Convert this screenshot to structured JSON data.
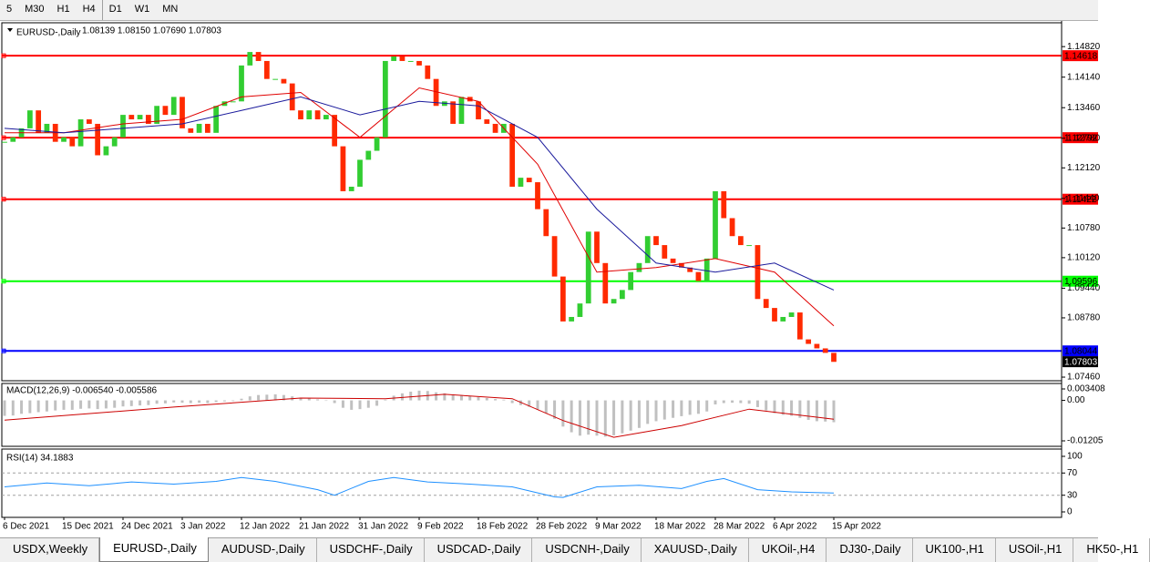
{
  "toolbar": {
    "timeframes": [
      "5",
      "M30",
      "H1",
      "H4",
      "D1",
      "W1",
      "MN"
    ]
  },
  "chart_data": [
    {
      "type": "candlestick",
      "title": "EURUSD-,Daily",
      "subtitle": "1.08139 1.08150 1.07690 1.07803",
      "categories": [
        "6 Dec 2021",
        null,
        null,
        null,
        null,
        null,
        null,
        "15 Dec 2021",
        null,
        null,
        null,
        null,
        null,
        null,
        "24 Dec 2021",
        null,
        null,
        null,
        null,
        null,
        null,
        "3 Jan 2022",
        null,
        null,
        null,
        null,
        null,
        null,
        "12 Jan 2022",
        null,
        null,
        null,
        null,
        null,
        null,
        "21 Jan 2022",
        null,
        null,
        null,
        null,
        null,
        null,
        "31 Jan 2022",
        null,
        null,
        null,
        null,
        null,
        null,
        "9 Feb 2022",
        null,
        null,
        null,
        null,
        null,
        null,
        "18 Feb 2022",
        null,
        null,
        null,
        null,
        null,
        null,
        "28 Feb 2022",
        null,
        null,
        null,
        null,
        null,
        null,
        "9 Mar 2022",
        null,
        null,
        null,
        null,
        null,
        null,
        "18 Mar 2022",
        null,
        null,
        null,
        null,
        null,
        null,
        "28 Mar 2022",
        null,
        null,
        null,
        null,
        null,
        null,
        "6 Apr 2022",
        null,
        null,
        null,
        null,
        null,
        null,
        "15 Apr 2022"
      ],
      "close": [
        1.127,
        1.128,
        1.13,
        1.134,
        1.129,
        1.131,
        1.127,
        1.128,
        1.126,
        1.132,
        1.131,
        1.124,
        1.126,
        1.128,
        1.133,
        1.132,
        1.133,
        1.131,
        1.135,
        1.133,
        1.137,
        1.13,
        1.129,
        1.131,
        1.129,
        1.135,
        1.136,
        1.136,
        1.144,
        1.147,
        1.145,
        1.141,
        1.141,
        1.14,
        1.134,
        1.132,
        1.134,
        1.132,
        1.133,
        1.126,
        1.116,
        1.117,
        1.123,
        1.125,
        1.128,
        1.145,
        1.146,
        1.145,
        1.145,
        1.144,
        1.141,
        1.135,
        1.136,
        1.131,
        1.137,
        1.136,
        1.132,
        1.131,
        1.129,
        1.131,
        1.117,
        1.119,
        1.118,
        1.112,
        1.106,
        1.097,
        1.087,
        1.088,
        1.091,
        1.107,
        1.1,
        1.091,
        1.092,
        1.094,
        1.098,
        1.1,
        1.106,
        1.104,
        1.101,
        1.1,
        1.099,
        1.098,
        1.096,
        1.101,
        1.116,
        1.11,
        1.106,
        1.104,
        1.104,
        1.092,
        1.09,
        1.087,
        1.088,
        1.089,
        1.083,
        1.082,
        1.081,
        1.08,
        1.078
      ],
      "colors": {
        "up": "#32cd32",
        "down": "#ff2a00"
      },
      "series": [
        {
          "x": [
            0,
            7,
            14,
            21,
            28,
            35,
            42,
            49,
            56,
            63,
            70,
            77,
            84,
            91,
            98
          ],
          "values": [
            1.129,
            1.129,
            1.131,
            1.132,
            1.137,
            1.138,
            1.128,
            1.139,
            1.136,
            1.122,
            1.098,
            1.099,
            1.101,
            1.098,
            1.086
          ],
          "color": "#e00000"
        },
        {
          "x": [
            0,
            7,
            14,
            21,
            28,
            35,
            42,
            49,
            56,
            63,
            70,
            77,
            84,
            91,
            98
          ],
          "values": [
            1.13,
            1.129,
            1.13,
            1.131,
            1.134,
            1.137,
            1.133,
            1.136,
            1.135,
            1.128,
            1.112,
            1.1,
            1.098,
            1.1,
            1.094
          ],
          "color": "#1a1a9c"
        }
      ],
      "levels": [
        {
          "value": 1.14618,
          "color": "#ff0000"
        },
        {
          "value": 1.12792,
          "color": "#ff0000"
        },
        {
          "value": 1.11422,
          "color": "#ff0000"
        },
        {
          "value": 1.09596,
          "color": "#00ff00"
        },
        {
          "value": 1.08044,
          "color": "#0000ff"
        }
      ],
      "last_price": 1.07803,
      "ylim": [
        1.0742,
        1.1529
      ],
      "yticks": [
        {
          "value": 1.1482,
          "label": "1.14820"
        },
        {
          "value": 1.1414,
          "label": "1.14140"
        },
        {
          "value": 1.1346,
          "label": "1.13460"
        },
        {
          "value": 1.1278,
          "label": "1.12780"
        },
        {
          "value": 1.1212,
          "label": "1.12120"
        },
        {
          "value": 1.1144,
          "label": "1.11440"
        },
        {
          "value": 1.1078,
          "label": "1.10780"
        },
        {
          "value": 1.1012,
          "label": "1.10120"
        },
        {
          "value": 1.0944,
          "label": "1.09440"
        },
        {
          "value": 1.0878,
          "label": "1.08780"
        },
        {
          "value": 1.0746,
          "label": "1.07460"
        }
      ]
    },
    {
      "type": "macd",
      "title": "MACD(12,26,9) -0.006540 -0.005586",
      "color": "#c0c0c0",
      "values": [
        -0.0046,
        -0.0045,
        -0.004,
        -0.0038,
        -0.0035,
        -0.0033,
        -0.003,
        -0.0028,
        -0.0028,
        -0.0025,
        -0.0024,
        -0.0026,
        -0.0024,
        -0.0022,
        -0.0018,
        -0.0017,
        -0.0015,
        -0.0014,
        -0.001,
        -0.0009,
        -0.0006,
        -0.0007,
        -0.0008,
        -0.0007,
        -0.0008,
        -0.0005,
        -0.0003,
        -0.0002,
        0.0005,
        0.0012,
        0.0016,
        0.0017,
        0.0018,
        0.0016,
        0.0012,
        0.0008,
        0.0006,
        0.0003,
        0,
        -0.0008,
        -0.0022,
        -0.0028,
        -0.0026,
        -0.0022,
        -0.0016,
        0.0002,
        0.0014,
        0.0021,
        0.0026,
        0.0029,
        0.0028,
        0.0024,
        0.0021,
        0.0016,
        0.0015,
        0.0013,
        0.001,
        0.0007,
        0.0004,
        0.0002,
        -0.0008,
        -0.0014,
        -0.0019,
        -0.0027,
        -0.0038,
        -0.0055,
        -0.0078,
        -0.0095,
        -0.0105,
        -0.0102,
        -0.0105,
        -0.0108,
        -0.0104,
        -0.0098,
        -0.009,
        -0.0082,
        -0.007,
        -0.0062,
        -0.0057,
        -0.0052,
        -0.0047,
        -0.0043,
        -0.004,
        -0.0033,
        -0.0012,
        -0.0008,
        -0.0007,
        -0.0008,
        -0.001,
        -0.002,
        -0.003,
        -0.0038,
        -0.0043,
        -0.0046,
        -0.0052,
        -0.0058,
        -0.0062,
        -0.0063,
        -0.0065
      ],
      "series": [
        {
          "x": [
            0,
            20,
            35,
            45,
            52,
            60,
            66,
            72,
            80,
            88,
            98
          ],
          "values": [
            -0.0059,
            -0.002,
            0.0007,
            0.0005,
            0.0018,
            0.0005,
            -0.006,
            -0.011,
            -0.0075,
            -0.0026,
            -0.0056
          ],
          "color": "#cc0000"
        }
      ],
      "ylim": [
        -0.01205,
        0.003408
      ],
      "yticks": [
        0.003408,
        {
          "value": 0,
          "label": "0.00"
        },
        -0.01205
      ]
    },
    {
      "type": "line",
      "title": "RSI(14) 34.1883",
      "series": [
        {
          "x": [
            0,
            5,
            10,
            15,
            20,
            25,
            28,
            32,
            37,
            39,
            43,
            46,
            50,
            55,
            60,
            65,
            66,
            70,
            75,
            80,
            83,
            85,
            89,
            93,
            98
          ],
          "values": [
            45,
            52,
            47,
            54,
            50,
            55,
            62,
            55,
            40,
            30,
            55,
            62,
            54,
            50,
            45,
            27,
            26,
            45,
            48,
            42,
            55,
            60,
            40,
            36,
            34
          ],
          "color": "#1e90ff"
        }
      ],
      "levels": [
        70,
        30
      ],
      "ylim": [
        0,
        100
      ],
      "yticks": [
        100,
        70,
        30,
        0
      ]
    }
  ],
  "tabs": {
    "items": [
      "USDX,Weekly",
      "EURUSD-,Daily",
      "AUDUSD-,Daily",
      "USDCHF-,Daily",
      "USDCAD-,Daily",
      "USDCNH-,Daily",
      "XAUUSD-,Daily",
      "UKOil-,H4",
      "DJ30-,Daily",
      "UK100-,H1",
      "USOil-,H1",
      "HK50-,H1"
    ],
    "active": 1
  }
}
